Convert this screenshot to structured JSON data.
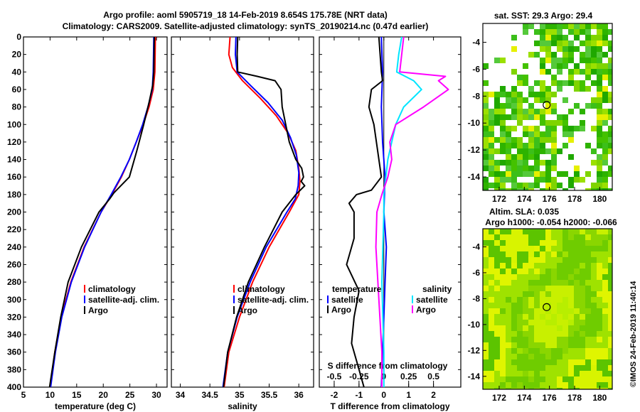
{
  "header": {
    "line1": "Argo profile: aoml 5905719_18 14-Feb-2019 8.654S 175.78E (NRT data)",
    "line2": "Climatology: CARS2009. Satellite-adjusted climatology: synTS_20190214.nc (0.47d earlier)"
  },
  "colors": {
    "climatology": "#ff0000",
    "satellite": "#0000ff",
    "argo": "#000000",
    "sal_sat": "#00e5ff",
    "sal_argo": "#ff00ff"
  },
  "depth_axis": {
    "ticks": [
      0,
      20,
      40,
      60,
      80,
      100,
      120,
      140,
      160,
      180,
      200,
      220,
      240,
      260,
      280,
      300,
      320,
      340,
      360,
      380,
      400
    ],
    "range": [
      0,
      400
    ]
  },
  "chart_data": [
    {
      "type": "line",
      "name": "temperature-profile",
      "xlabel": "temperature (deg C)",
      "xlim": [
        5,
        32
      ],
      "xticks": [
        5,
        10,
        15,
        20,
        25,
        30
      ],
      "legend": [
        "climatology",
        "satellite-adj. clim.",
        "Argo"
      ],
      "series": [
        {
          "name": "climatology",
          "depth": [
            0,
            40,
            60,
            80,
            100,
            120,
            140,
            160,
            180,
            200,
            240,
            280,
            320,
            360,
            400
          ],
          "values": [
            29.8,
            29.7,
            29.4,
            28.6,
            27.5,
            26.2,
            24.9,
            23.4,
            21.6,
            19.6,
            16.4,
            13.9,
            12.1,
            10.9,
            10.0
          ]
        },
        {
          "name": "satellite-adj. clim.",
          "depth": [
            0,
            40,
            60,
            80,
            100,
            120,
            140,
            160,
            180,
            200,
            240,
            280,
            320,
            360,
            400
          ],
          "values": [
            29.5,
            29.4,
            29.2,
            28.4,
            27.4,
            26.2,
            24.9,
            23.3,
            21.5,
            19.6,
            16.5,
            14.0,
            12.2,
            11.0,
            10.1
          ]
        },
        {
          "name": "Argo",
          "depth": [
            0,
            40,
            55,
            75,
            100,
            130,
            160,
            178,
            185,
            200,
            240,
            280,
            320,
            360,
            400
          ],
          "values": [
            29.6,
            29.5,
            29.3,
            28.6,
            27.6,
            26.3,
            24.9,
            22.0,
            21.2,
            19.2,
            15.9,
            13.4,
            12.0,
            10.9,
            9.9
          ]
        }
      ]
    },
    {
      "type": "line",
      "name": "salinity-profile",
      "xlabel": "salinity",
      "xlim": [
        33.85,
        36.25
      ],
      "xticks": [
        34,
        34.5,
        35,
        35.5,
        36
      ],
      "xticklabels": [
        "34",
        "34.5",
        "35",
        "35.5",
        "36"
      ],
      "legend": [
        "climatology",
        "satellite-adj. clim.",
        "Argo"
      ],
      "series": [
        {
          "name": "climatology",
          "depth": [
            0,
            20,
            35,
            50,
            70,
            90,
            110,
            130,
            150,
            165,
            180,
            200,
            240,
            280,
            320,
            360,
            400
          ],
          "values": [
            34.84,
            34.82,
            34.88,
            35.05,
            35.35,
            35.62,
            35.82,
            35.95,
            36.0,
            36.02,
            36.0,
            35.84,
            35.5,
            35.22,
            35.0,
            34.82,
            34.74
          ]
        },
        {
          "name": "satellite-adj. clim.",
          "depth": [
            0,
            20,
            40,
            55,
            75,
            95,
            115,
            135,
            155,
            170,
            185,
            200,
            240,
            280,
            320,
            360,
            400
          ],
          "values": [
            34.94,
            34.93,
            34.96,
            35.18,
            35.48,
            35.72,
            35.86,
            35.96,
            36.0,
            35.99,
            35.94,
            35.8,
            35.45,
            35.18,
            34.96,
            34.8,
            34.72
          ]
        },
        {
          "name": "Argo",
          "depth": [
            0,
            20,
            40,
            45,
            50,
            60,
            80,
            90,
            100,
            120,
            140,
            150,
            160,
            165,
            170,
            180,
            200,
            240,
            280,
            320,
            360,
            400
          ],
          "values": [
            34.97,
            34.96,
            34.97,
            35.3,
            35.6,
            35.7,
            35.72,
            35.75,
            35.78,
            35.84,
            35.95,
            36.05,
            36.08,
            36.04,
            36.1,
            35.95,
            35.72,
            35.42,
            35.15,
            34.95,
            34.8,
            34.73
          ]
        }
      ]
    },
    {
      "type": "line",
      "name": "difference-profile",
      "xlabel": "T difference from climatology",
      "xlabel_top": "S difference from climatology",
      "xlim": [
        -2.6,
        3.1
      ],
      "xticks": [
        -2,
        -1,
        0,
        1,
        2
      ],
      "top_ticklabels": [
        "-0.5",
        "-0.25",
        "0",
        "0.25",
        "0.5"
      ],
      "legend_left_title": "temperature",
      "legend_right_title": "salinity",
      "legend": [
        "satellite",
        "Argo",
        "satellite",
        "Argo"
      ],
      "series": [
        {
          "name": "temperature satellite",
          "depth": [
            0,
            40,
            80,
            120,
            160,
            200,
            240,
            280,
            320,
            360,
            400
          ],
          "values": [
            -0.1,
            -0.05,
            -0.1,
            -0.05,
            0.05,
            0.0,
            0.1,
            0.05,
            0.0,
            -0.05,
            -0.1
          ]
        },
        {
          "name": "temperature Argo",
          "depth": [
            0,
            40,
            50,
            60,
            80,
            100,
            120,
            140,
            160,
            175,
            180,
            190,
            200,
            230,
            260,
            290,
            320,
            350,
            380,
            400
          ],
          "values": [
            -0.2,
            -0.1,
            -0.05,
            -0.5,
            -0.6,
            -0.4,
            -0.3,
            -0.2,
            -0.1,
            -0.5,
            -1.1,
            -1.4,
            -1.2,
            -1.2,
            -1.5,
            -1.0,
            -1.2,
            -1.3,
            -1.0,
            -0.8
          ]
        },
        {
          "name": "salinity satellite",
          "depth": [
            0,
            20,
            40,
            50,
            60,
            80,
            100,
            120,
            140,
            160,
            180,
            200,
            240,
            280,
            320,
            360,
            400
          ],
          "values": [
            0.18,
            0.15,
            0.13,
            0.3,
            0.38,
            0.2,
            0.12,
            0.08,
            0.04,
            0.02,
            0.0,
            0.0,
            -0.01,
            -0.02,
            -0.01,
            0.0,
            0.0
          ]
        },
        {
          "name": "salinity Argo",
          "depth": [
            0,
            20,
            40,
            45,
            50,
            60,
            80,
            100,
            120,
            140,
            160,
            180,
            200,
            240,
            280,
            320,
            360,
            400
          ],
          "values": [
            0.2,
            0.18,
            0.16,
            0.62,
            0.55,
            0.65,
            0.4,
            0.12,
            0.06,
            0.08,
            0.04,
            -0.02,
            -0.07,
            -0.08,
            -0.06,
            -0.04,
            -0.02,
            -0.02
          ]
        }
      ]
    }
  ],
  "maps": [
    {
      "name": "sst-map",
      "title": "sat. SST: 29.3 Argo: 29.4",
      "xticks": [
        "172",
        "174",
        "176",
        "178",
        "180"
      ],
      "yticks": [
        "-4",
        "-6",
        "-8",
        "-10",
        "-12",
        "-14"
      ],
      "xlim": [
        170.7,
        181
      ],
      "ylim": [
        -15,
        -2.6
      ],
      "marker": [
        175.78,
        -8.654
      ]
    },
    {
      "name": "sla-map",
      "title": "Altim. SLA: 0.035",
      "subtitle": "Argo h1000: -0.054 h2000: -0.066",
      "xticks": [
        "172",
        "174",
        "176",
        "178",
        "180"
      ],
      "yticks": [
        "-4",
        "-6",
        "-8",
        "-10",
        "-12",
        "-14"
      ],
      "xlim": [
        170.7,
        181
      ],
      "ylim": [
        -15,
        -2.6
      ],
      "marker": [
        175.78,
        -8.654
      ]
    }
  ],
  "footer_stamp": "©IMOS 24-Feb-2019 11:40:14"
}
